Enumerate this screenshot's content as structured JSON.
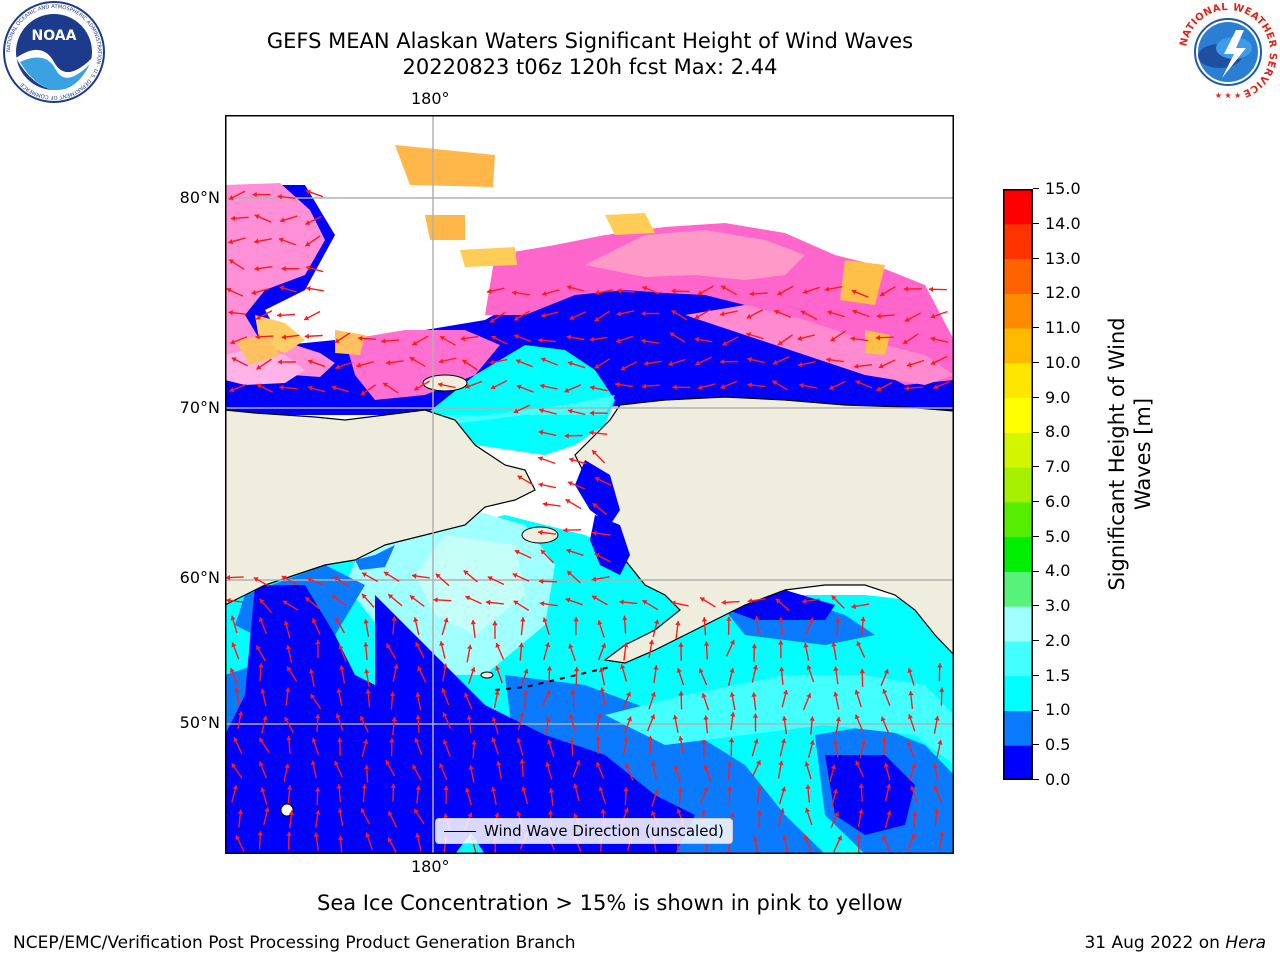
{
  "title": {
    "line1": "GEFS MEAN Alaskan Waters Significant Height of Wind Waves",
    "line2": "20220823 t06z 120h fcst   Max: 2.44"
  },
  "map": {
    "lon_label_top": "180°",
    "lon_label_bottom": "180°",
    "lat_labels": [
      "80°N",
      "70°N",
      "60°N",
      "50°N"
    ],
    "legend": "Wind Wave Direction (unscaled)",
    "colors": {
      "land": "#efedde",
      "coast": "#000000",
      "grid": "#b0b0b0",
      "arrow": "#ff1a1a"
    }
  },
  "colorbar": {
    "label": "Significant Height of Wind Waves [m]",
    "ticks": [
      "0.0",
      "0.5",
      "1.0",
      "1.5",
      "2.0",
      "3.0",
      "4.0",
      "5.0",
      "6.0",
      "7.0",
      "8.0",
      "9.0",
      "10.0",
      "11.0",
      "12.0",
      "13.0",
      "14.0",
      "15.0"
    ],
    "colors": [
      "#0000ff",
      "#0a7bff",
      "#00ffff",
      "#44ffff",
      "#a0ffff",
      "#57f27a",
      "#00ee00",
      "#55ee00",
      "#a5ef00",
      "#d2f500",
      "#ffff00",
      "#ffe600",
      "#ffb900",
      "#ff8c00",
      "#ff6200",
      "#ff3200",
      "#ff0000"
    ]
  },
  "ice_note": "Sea Ice Concentration > 15% is shown in pink to yellow",
  "footer": {
    "left": "NCEP/EMC/Verification Post Processing Product Generation Branch",
    "right_date": "31 Aug 2022 on ",
    "right_host": "Hera"
  },
  "logos": {
    "noaa": "NOAA",
    "noaa_ring": "NATIONAL OCEANIC AND ATMOSPHERIC ADMINISTRATION · U.S. DEPARTMENT OF COMMERCE",
    "nws_ring": "NATIONAL WEATHER SERVICE"
  }
}
